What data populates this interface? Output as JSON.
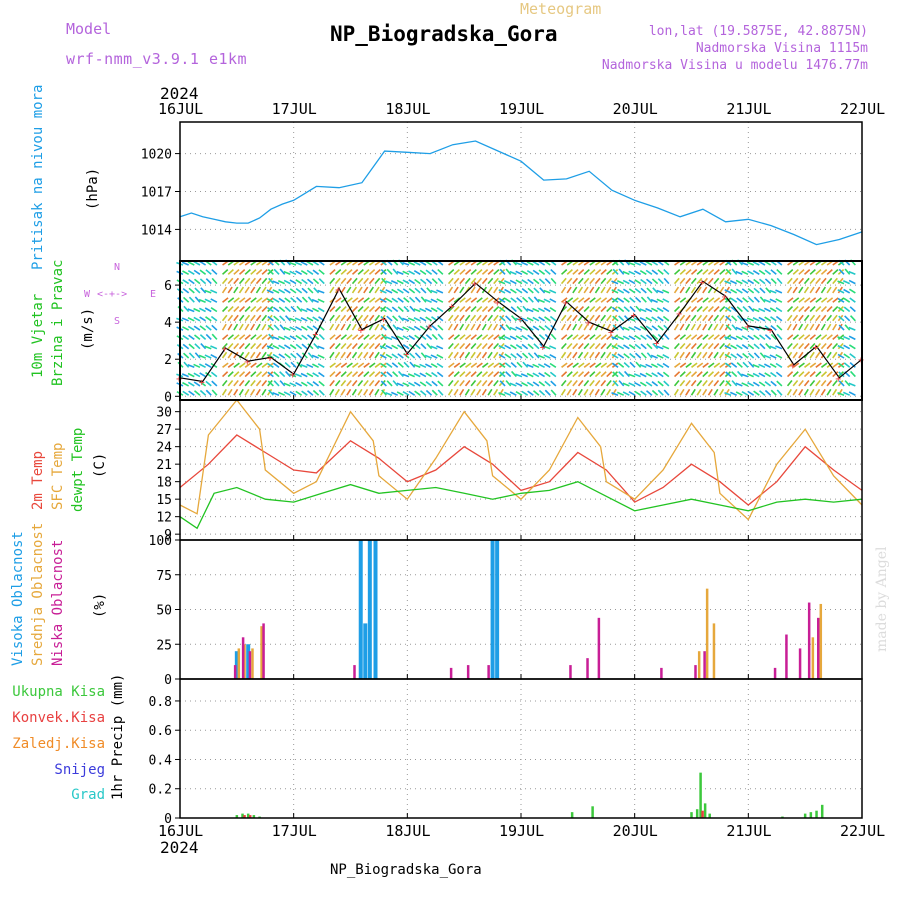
{
  "header": {
    "model_label": "Model",
    "model_name": "wrf-nmm_v3.9.1 e1km",
    "meteogram_label": "Meteogram",
    "station_title": "NP_Biogradska_Gora",
    "lonlat": "lon,lat (19.5875E, 42.8875N)",
    "elevation": "Nadmorska Visina 1115m",
    "model_elevation": "Nadmorska Visina u modelu 1476.77m",
    "credit": "made by Angel"
  },
  "footer": {
    "station": "NP_Biogradska_Gora"
  },
  "colors": {
    "pressure": "#1e9ee6",
    "temp2m": "#e8483c",
    "sfc": "#e6a83c",
    "dewpt": "#22c322",
    "high": "#1e9ee6",
    "mid": "#e6a83c",
    "low": "#c81e96",
    "total": "#3cc83c",
    "conv": "#e84040",
    "frz": "#f08c28",
    "snow": "#3c3cdc",
    "hail": "#28c8c8",
    "magenta": "#c864dc"
  },
  "time_axis": {
    "year": "2024",
    "labels": [
      "16JUL",
      "17JUL",
      "18JUL",
      "19JUL",
      "20JUL",
      "21JUL",
      "22JUL"
    ]
  },
  "chart_data": [
    {
      "type": "line",
      "title": "Pritisak na nivou mora",
      "ylabel": "(hPa)",
      "ylim": [
        1011.5,
        1022.5
      ],
      "yticks": [
        "1014",
        "1017",
        "1020"
      ],
      "series": [
        {
          "name": "Pritisak na nivou mora",
          "x": [
            0,
            0.1,
            0.2,
            0.3,
            0.4,
            0.5,
            0.6,
            0.7,
            0.8,
            0.9,
            1.0,
            1.2,
            1.4,
            1.6,
            1.8,
            2.0,
            2.2,
            2.4,
            2.6,
            2.8,
            3.0,
            3.2,
            3.4,
            3.6,
            3.8,
            4.0,
            4.2,
            4.4,
            4.6,
            4.8,
            5.0,
            5.2,
            5.4,
            5.6,
            5.8,
            6.0
          ],
          "values": [
            1015.0,
            1015.3,
            1015.0,
            1014.8,
            1014.6,
            1014.5,
            1014.5,
            1014.9,
            1015.6,
            1016.0,
            1016.3,
            1017.4,
            1017.3,
            1017.7,
            1020.2,
            1020.1,
            1020.0,
            1020.7,
            1021.0,
            1020.2,
            1019.4,
            1017.9,
            1018.0,
            1018.6,
            1017.1,
            1016.3,
            1015.7,
            1015.0,
            1015.6,
            1014.6,
            1014.8,
            1014.3,
            1013.6,
            1012.8,
            1013.2,
            1013.8
          ]
        }
      ]
    },
    {
      "type": "line",
      "title": "10m Vjetar Brzina i Pravac",
      "ylabel": "(m/s)",
      "ylim": [
        -0.2,
        7.3
      ],
      "yticks": [
        "0",
        "2",
        "4",
        "6"
      ],
      "compass": {
        "n": "N",
        "s": "S",
        "w": "W",
        "e": "E"
      },
      "series": [
        {
          "name": "Brzina",
          "x": [
            0,
            0.2,
            0.4,
            0.6,
            0.8,
            1.0,
            1.2,
            1.4,
            1.6,
            1.8,
            2.0,
            2.2,
            2.4,
            2.6,
            2.8,
            3.0,
            3.2,
            3.4,
            3.6,
            3.8,
            4.0,
            4.2,
            4.4,
            4.6,
            4.8,
            5.0,
            5.2,
            5.4,
            5.6,
            5.8,
            6.0
          ],
          "values": [
            1.0,
            0.8,
            2.6,
            1.9,
            2.1,
            1.2,
            3.4,
            5.8,
            3.6,
            4.2,
            2.3,
            3.8,
            4.9,
            6.1,
            5.1,
            4.2,
            2.7,
            5.1,
            4.0,
            3.5,
            4.4,
            2.9,
            4.5,
            6.2,
            5.4,
            3.8,
            3.6,
            1.7,
            2.7,
            1.0,
            2.0
          ]
        }
      ]
    },
    {
      "type": "line",
      "title": "2m Temp / SFC Temp / dewpt Temp",
      "ylabel": "(C)",
      "ylim": [
        8,
        32
      ],
      "yticks": [
        "9",
        "12",
        "15",
        "18",
        "21",
        "24",
        "27",
        "30"
      ],
      "series": [
        {
          "name": "2m Temp",
          "x": [
            0,
            0.25,
            0.5,
            0.75,
            1.0,
            1.2,
            1.5,
            1.75,
            2.0,
            2.25,
            2.5,
            2.75,
            3.0,
            3.25,
            3.5,
            3.75,
            4.0,
            4.25,
            4.5,
            4.75,
            5.0,
            5.25,
            5.5,
            5.75,
            6.0
          ],
          "values": [
            17,
            21,
            26,
            23,
            20,
            19.5,
            25,
            22,
            18,
            20,
            24,
            21,
            16.5,
            18,
            23,
            20,
            14.5,
            17,
            21,
            18,
            14,
            18,
            24,
            20,
            16.5
          ]
        },
        {
          "name": "SFC Temp",
          "x": [
            0,
            0.15,
            0.25,
            0.5,
            0.7,
            0.75,
            1.0,
            1.2,
            1.5,
            1.7,
            1.75,
            2.0,
            2.25,
            2.5,
            2.7,
            2.75,
            3.0,
            3.25,
            3.5,
            3.7,
            3.75,
            4.0,
            4.25,
            4.5,
            4.7,
            4.75,
            5.0,
            5.25,
            5.5,
            5.75,
            6.0
          ],
          "values": [
            14,
            12.5,
            26,
            32,
            27,
            20,
            16,
            18,
            30,
            25,
            19,
            15,
            22,
            30,
            25,
            19,
            15,
            20,
            29,
            24,
            18,
            15,
            20,
            28,
            23,
            16,
            11.5,
            21,
            27,
            19,
            14
          ]
        },
        {
          "name": "dewpt Temp",
          "x": [
            0,
            0.15,
            0.3,
            0.5,
            0.75,
            1.0,
            1.25,
            1.5,
            1.75,
            2.0,
            2.25,
            2.5,
            2.75,
            3.0,
            3.25,
            3.5,
            3.75,
            4.0,
            4.25,
            4.5,
            4.75,
            5.0,
            5.25,
            5.5,
            5.75,
            6.0
          ],
          "values": [
            12,
            10,
            16,
            17,
            15,
            14.5,
            16,
            17.5,
            16,
            16.5,
            17,
            16,
            15,
            16,
            16.5,
            18,
            15.5,
            13,
            14,
            15,
            14,
            13,
            14.5,
            15,
            14.5,
            15
          ]
        }
      ]
    },
    {
      "type": "bar",
      "title": "Visoka Oblacnost / Srednja Oblacnost / Niska Oblacnost",
      "ylabel": "(%)",
      "ylim": [
        0,
        100
      ],
      "yticks": [
        "0",
        "25",
        "50",
        "75",
        "100"
      ],
      "series": [
        {
          "name": "Visoka Oblacnost",
          "x": [
            0.5,
            0.6,
            1.59,
            1.63,
            1.67,
            1.72,
            2.75,
            2.79,
            3.0
          ],
          "values": [
            20,
            25,
            100,
            40,
            100,
            100,
            100,
            100,
            0
          ]
        },
        {
          "name": "Srednja Oblacnost",
          "x": [
            0.5,
            0.55,
            0.62,
            0.7,
            4.55,
            4.62,
            4.68,
            5.55,
            5.62
          ],
          "values": [
            22,
            25,
            22,
            38,
            20,
            65,
            40,
            30,
            54
          ]
        },
        {
          "name": "Niska Oblacnost",
          "x": [
            0.45,
            0.52,
            0.58,
            0.7,
            1.5,
            2.35,
            2.5,
            2.68,
            3.4,
            3.55,
            3.65,
            4.2,
            4.5,
            4.58,
            5.2,
            5.3,
            5.42,
            5.5,
            5.58
          ],
          "values": [
            10,
            30,
            20,
            40,
            10,
            8,
            10,
            10,
            10,
            15,
            44,
            8,
            10,
            20,
            8,
            32,
            22,
            55,
            44
          ]
        }
      ]
    },
    {
      "type": "bar",
      "title": "Ukupna Kisa / Konvek.Kisa / Zaledj.Kisa / Snijeg / Grad",
      "ylabel": "1hr Precip (mm)",
      "ylim": [
        0,
        0.95
      ],
      "yticks": [
        "0",
        "0.2",
        "0.4",
        "0.6",
        "0.8"
      ],
      "series": [
        {
          "name": "Ukupna Kisa",
          "x": [
            0.5,
            0.55,
            0.6,
            0.65,
            0.7,
            3.45,
            3.63,
            4.5,
            4.55,
            4.58,
            4.62,
            4.66,
            5.3,
            5.5,
            5.55,
            5.6,
            5.65
          ],
          "values": [
            0.02,
            0.03,
            0.03,
            0.02,
            0.01,
            0.04,
            0.08,
            0.04,
            0.06,
            0.31,
            0.1,
            0.03,
            0.01,
            0.03,
            0.04,
            0.05,
            0.09
          ]
        },
        {
          "name": "Konvek.Kisa",
          "x": [
            0.55,
            0.6,
            4.58
          ],
          "values": [
            0.02,
            0.02,
            0.05
          ]
        },
        {
          "name": "Zaledj.Kisa",
          "x": [],
          "values": []
        },
        {
          "name": "Snijeg",
          "x": [],
          "values": []
        },
        {
          "name": "Grad",
          "x": [],
          "values": []
        }
      ]
    }
  ]
}
